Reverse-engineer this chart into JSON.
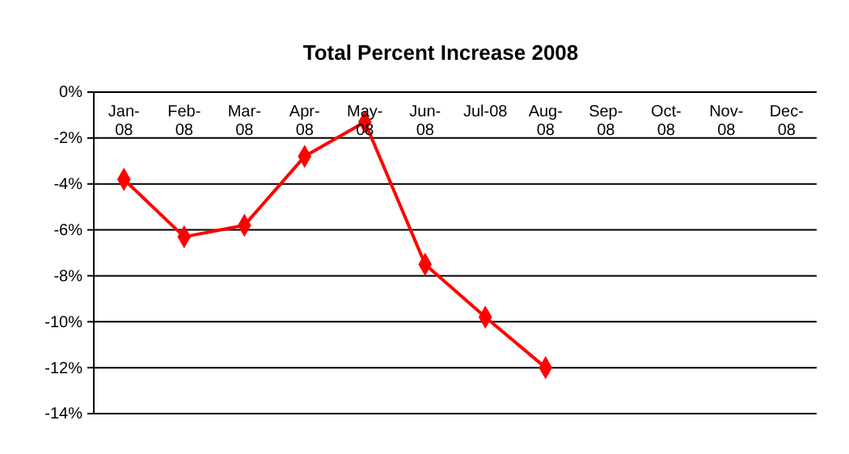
{
  "chart_data": {
    "type": "line",
    "title": "Total Percent Increase 2008",
    "categories": [
      "Jan-08",
      "Feb-08",
      "Mar-08",
      "Apr-08",
      "May-08",
      "Jun-08",
      "Jul-08",
      "Aug-08",
      "Sep-08",
      "Oct-08",
      "Nov-08",
      "Dec-08"
    ],
    "series": [
      {
        "color": "#ff0000",
        "values": [
          -3.8,
          -6.3,
          -5.8,
          -2.8,
          -1.3,
          -7.5,
          -9.8,
          -12.0,
          null,
          null,
          null,
          null
        ]
      }
    ],
    "ylim": [
      -14,
      0
    ],
    "yticks": [
      {
        "value": -14,
        "label": "-14%"
      },
      {
        "value": -12,
        "label": "-12%"
      },
      {
        "value": -10,
        "label": "-10%"
      },
      {
        "value": -8,
        "label": "-8%"
      },
      {
        "value": -6,
        "label": "-6%"
      },
      {
        "value": -4,
        "label": "-4%"
      },
      {
        "value": -2,
        "label": "-2%"
      },
      {
        "value": 0,
        "label": "0%"
      }
    ],
    "grid": "y",
    "marker": "diamond",
    "line_style": "solid"
  }
}
